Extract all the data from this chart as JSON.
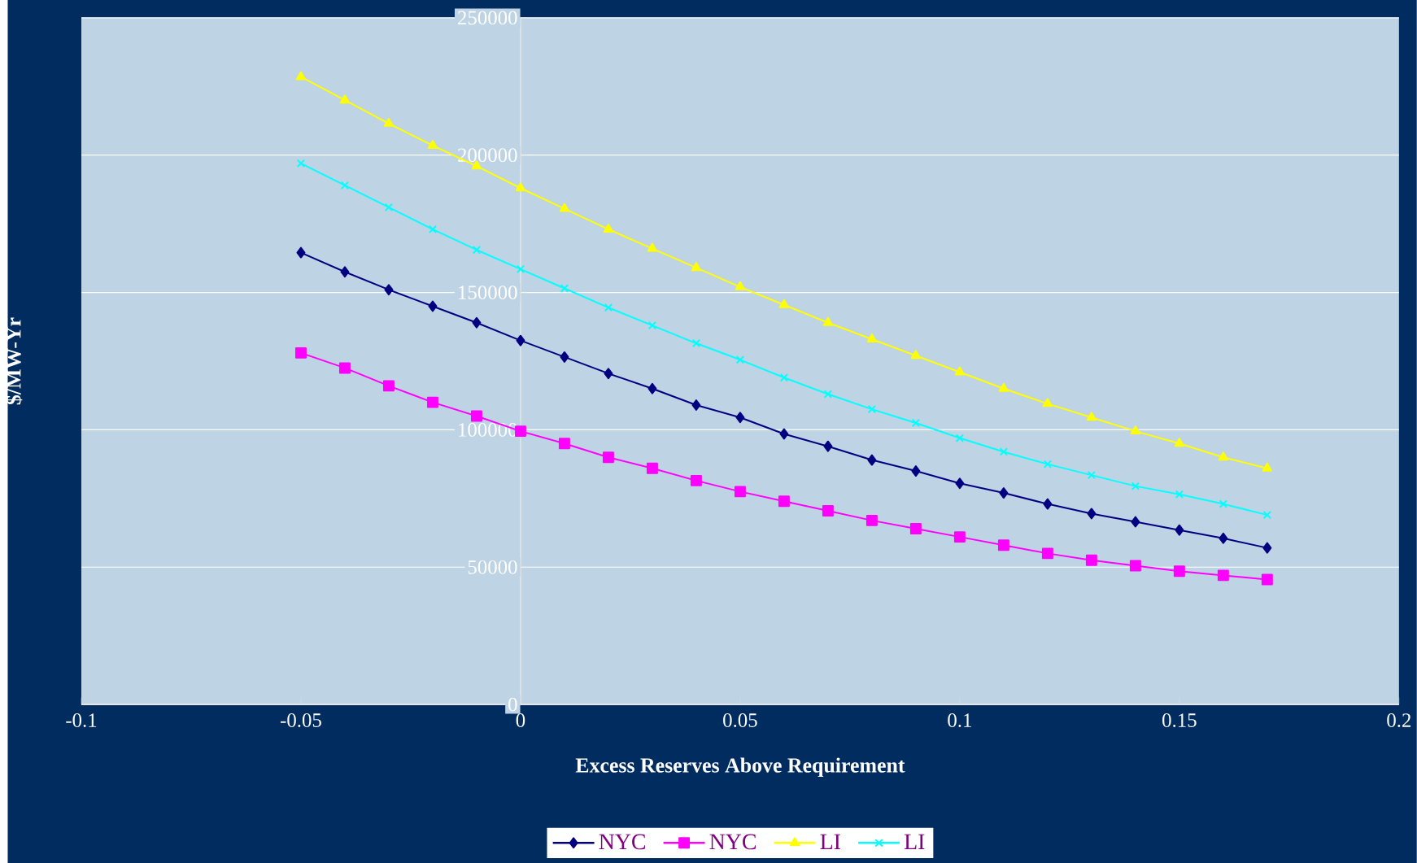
{
  "chart_data": {
    "type": "line",
    "xlabel": "Excess Reserves Above Requirement",
    "ylabel": "$/MW-Yr",
    "x": [
      -0.05,
      -0.04,
      -0.03,
      -0.02,
      -0.01,
      0,
      0.01,
      0.02,
      0.03,
      0.04,
      0.05,
      0.06,
      0.07,
      0.08,
      0.09,
      0.1,
      0.11,
      0.12,
      0.13,
      0.14,
      0.15,
      0.16,
      0.17
    ],
    "xlim": [
      -0.1,
      0.2
    ],
    "xticks": [
      -0.1,
      -0.05,
      0,
      0.05,
      0.1,
      0.15,
      0.2
    ],
    "ylim": [
      0,
      250000
    ],
    "yticks": [
      0,
      50000,
      100000,
      150000,
      200000,
      250000
    ],
    "grid": "y",
    "legend": "bottom",
    "series": [
      {
        "name": "NYC",
        "color": "#000080",
        "marker": "diamond",
        "values": [
          164500,
          157500,
          151000,
          145000,
          139000,
          132500,
          126500,
          120500,
          115000,
          109000,
          104500,
          98500,
          94000,
          89000,
          85000,
          80500,
          77000,
          73000,
          69500,
          66500,
          63500,
          60500,
          57000
        ]
      },
      {
        "name": "NYC",
        "color": "#ff00ff",
        "marker": "square",
        "values": [
          128000,
          122500,
          116000,
          110000,
          105000,
          99500,
          95000,
          90000,
          86000,
          81500,
          77500,
          74000,
          70500,
          67000,
          64000,
          61000,
          58000,
          55000,
          52500,
          50500,
          48500,
          47000,
          45500
        ]
      },
      {
        "name": "LI",
        "color": "#ffff00",
        "marker": "triangle",
        "values": [
          228500,
          220000,
          211500,
          203500,
          196000,
          188000,
          180500,
          173000,
          166000,
          159000,
          152000,
          145500,
          139000,
          133000,
          127000,
          121000,
          115000,
          109500,
          104500,
          99500,
          95000,
          90000,
          86000
        ]
      },
      {
        "name": "LI",
        "color": "#00ffff",
        "marker": "cross",
        "values": [
          197000,
          189000,
          181000,
          173000,
          165500,
          158500,
          151500,
          144500,
          138000,
          131500,
          125500,
          119000,
          113000,
          107500,
          102500,
          97000,
          92000,
          87500,
          83500,
          79500,
          76500,
          73000,
          69000
        ]
      }
    ]
  }
}
